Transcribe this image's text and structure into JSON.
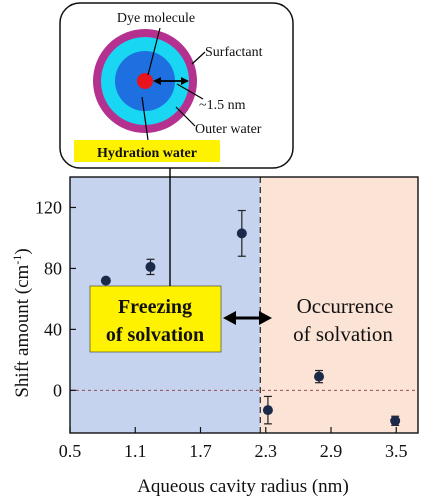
{
  "inset": {
    "labels": {
      "dye": "Dye molecule",
      "surfactant": "Surfactant",
      "size": "~1.5 nm",
      "outer_water": "Outer water",
      "hydration_water": "Hydration water"
    },
    "colors": {
      "surfactant": "#b5318f",
      "outer_water": "#19d6f2",
      "hydration_water": "#1e6fe0",
      "dye": "#e8131b",
      "highlight": "#fff200"
    }
  },
  "annotations": {
    "freezing_line1": "Freezing",
    "freezing_line2": "of solvation",
    "occurrence_line1": "Occurrence",
    "occurrence_line2": "of solvation"
  },
  "regions": {
    "left_color": "#c6d3ee",
    "right_color": "#fbe3d5",
    "boundary_x": 2.25
  },
  "chart_data": {
    "type": "scatter",
    "xlabel": "Aqueous cavity radius (nm)",
    "ylabel": "Shift amount (cm",
    "ylabel_sup": "-1",
    "ylabel_close": ")",
    "xlim": [
      0.5,
      3.7
    ],
    "ylim": [
      -28,
      140
    ],
    "xticks": [
      "0.5",
      "1.1",
      "1.7",
      "2.3",
      "2.9",
      "3.5"
    ],
    "xtick_values": [
      0.5,
      1.1,
      1.7,
      2.3,
      2.9,
      3.5
    ],
    "yticks": [
      "0",
      "40",
      "80",
      "120"
    ],
    "ytick_values": [
      0,
      40,
      80,
      120
    ],
    "points": [
      {
        "x": 0.83,
        "y": 72,
        "err": 0
      },
      {
        "x": 1.24,
        "y": 81,
        "err": 5
      },
      {
        "x": 2.08,
        "y": 103,
        "err": 15
      },
      {
        "x": 2.32,
        "y": -13,
        "err": 9
      },
      {
        "x": 2.79,
        "y": 9,
        "err": 4
      },
      {
        "x": 3.49,
        "y": -20,
        "err": 3
      }
    ],
    "point_color": "#1c2a4a",
    "zero_line": true
  }
}
